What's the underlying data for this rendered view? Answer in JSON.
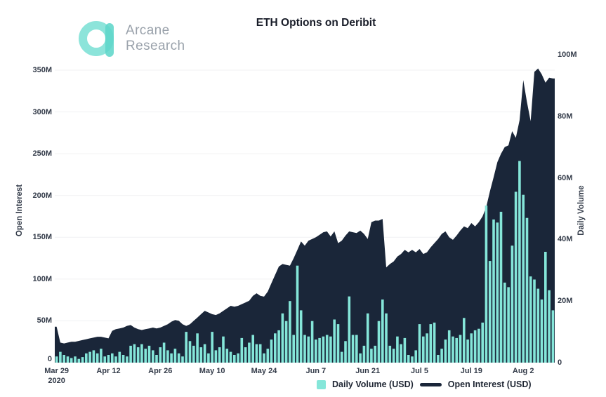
{
  "logo": {
    "line1": "Arcane",
    "line2": "Research"
  },
  "title": "ETH Options on Deribit",
  "colors": {
    "volume": "#85e6d9",
    "open_interest": "#1a2639",
    "logo_ring": "#8ce4da",
    "logo_bar": "#5fd6ca",
    "grid": "#f0f1f3",
    "grid_base": "#e9ebee",
    "axis_text": "#333b49"
  },
  "chart_data": {
    "type": "composite",
    "title": "ETH Options on Deribit",
    "x_start": "Mar 29 2020",
    "x_end": "Aug 10 2020",
    "x_tick_labels": [
      {
        "i": 0,
        "label": "Mar 29",
        "sub": "2020"
      },
      {
        "i": 14,
        "label": "Apr 12"
      },
      {
        "i": 28,
        "label": "Apr 26"
      },
      {
        "i": 42,
        "label": "May 10"
      },
      {
        "i": 56,
        "label": "May 24"
      },
      {
        "i": 70,
        "label": "Jun 7"
      },
      {
        "i": 84,
        "label": "Jun 21"
      },
      {
        "i": 98,
        "label": "Jul 5"
      },
      {
        "i": 112,
        "label": "Jul 19"
      },
      {
        "i": 126,
        "label": "Aug 2"
      }
    ],
    "left_axis": {
      "title": "Open Interest",
      "max": 350,
      "ticks": [
        "0",
        "50M",
        "100M",
        "150M",
        "200M",
        "250M",
        "300M",
        "350M"
      ]
    },
    "right_axis": {
      "title": "Daily Volume",
      "max": 100,
      "ticks": [
        "0",
        "20M",
        "40M",
        "60M",
        "80M",
        "100M"
      ]
    },
    "legend_position": "bottom",
    "grid": "horizontal",
    "series": [
      {
        "name": "Daily Volume (USD)",
        "type": "bar",
        "axis": "right",
        "unit": "M USD",
        "values": [
          2,
          3.5,
          2.5,
          2,
          1.5,
          2,
          1.2,
          1.8,
          3,
          3.5,
          4,
          3,
          4.5,
          2,
          2.5,
          3,
          2,
          3.5,
          2.5,
          2,
          5.5,
          6,
          5,
          6,
          4.5,
          5.5,
          4,
          2.5,
          5,
          6.5,
          4,
          3,
          4.5,
          3,
          2,
          10,
          7,
          5.5,
          9.5,
          5,
          6,
          3,
          10,
          4,
          5,
          8.5,
          4.5,
          3.5,
          2.5,
          3,
          8,
          5,
          6.5,
          9,
          6,
          6,
          3,
          4.5,
          7.5,
          9.5,
          10.5,
          16,
          13.5,
          20,
          9,
          31.5,
          17,
          9,
          8.5,
          13.5,
          7.5,
          8,
          8.5,
          9,
          8.5,
          14,
          12.5,
          3.5,
          7,
          21.5,
          9,
          9,
          3,
          5.5,
          16,
          4.5,
          5.5,
          13.5,
          20.5,
          16,
          5.5,
          4.5,
          8.5,
          6,
          8,
          2.5,
          2,
          4,
          12.5,
          8.5,
          9.5,
          12.5,
          13,
          2.5,
          4.5,
          7.5,
          10.5,
          8.5,
          8,
          9,
          14.5,
          7.5,
          9.5,
          10.5,
          11,
          13,
          51,
          33,
          46.5,
          45.5,
          49,
          26,
          24.5,
          38,
          55.5,
          65.5,
          54.5,
          47,
          28,
          27,
          24,
          20.5,
          36,
          23.5,
          17
        ]
      },
      {
        "name": "Open Interest (USD)",
        "type": "area",
        "axis": "left",
        "unit": "M USD",
        "values": [
          43,
          24,
          23,
          24,
          25,
          25,
          26,
          27,
          28,
          29,
          30,
          31,
          31,
          30,
          29,
          38,
          40,
          41,
          42,
          44,
          45,
          42,
          40,
          39,
          40,
          41,
          42,
          41,
          42,
          44,
          46,
          49,
          51,
          50,
          46,
          44,
          46,
          50,
          54,
          58,
          62,
          60,
          58,
          57,
          59,
          62,
          65,
          68,
          67,
          68,
          70,
          72,
          74,
          80,
          83,
          80,
          79,
          85,
          95,
          105,
          115,
          118,
          117,
          116,
          125,
          135,
          145,
          140,
          146,
          148,
          150,
          153,
          156,
          157,
          151,
          157,
          143,
          146,
          152,
          157,
          156,
          155,
          158,
          154,
          148,
          168,
          170,
          170,
          172,
          114,
          118,
          121,
          127,
          130,
          135,
          132,
          135,
          132,
          136,
          130,
          132,
          138,
          143,
          148,
          154,
          157,
          150,
          147,
          152,
          158,
          163,
          161,
          167,
          163,
          168,
          175,
          186,
          205,
          222,
          240,
          250,
          258,
          260,
          277,
          269,
          290,
          338,
          312,
          289,
          348,
          352,
          345,
          335,
          341,
          340
        ]
      }
    ]
  }
}
